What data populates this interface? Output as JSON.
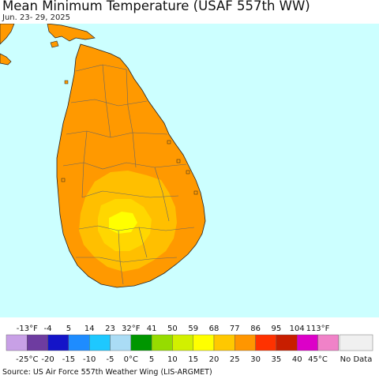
{
  "header": {
    "title": "Mean Minimum Temperature (USAF 557th WW)",
    "date_range": "Jun. 23- 29, 2025"
  },
  "map": {
    "ocean_color": "#ccffff",
    "land_color_dominant": "#ff9900",
    "warm_zone_color": "#ffbf00",
    "cooler_zone_color": "#ffd700",
    "coolest_spot_color": "#ffff00",
    "region": "Sri Lanka"
  },
  "legend": {
    "fahrenheit_labels": [
      "-13°F",
      "-4",
      "5",
      "14",
      "23",
      "32°F",
      "41",
      "50",
      "59",
      "68",
      "77",
      "86",
      "95",
      "104",
      "113°F"
    ],
    "celsius_labels": [
      "-25°C",
      "-20",
      "-15",
      "-10",
      "-5",
      "0°C",
      "5",
      "10",
      "15",
      "20",
      "25",
      "30",
      "35",
      "40",
      "45°C"
    ],
    "colors": [
      "#c8a0e6",
      "#6e3ca0",
      "#1414c8",
      "#1e8cff",
      "#1ec8ff",
      "#aadcf5",
      "#009600",
      "#96dc00",
      "#d2f000",
      "#ffff00",
      "#ffc800",
      "#ff9600",
      "#ff3200",
      "#c81e00",
      "#dc00c8",
      "#f082c8"
    ],
    "no_data_label": "No Data",
    "no_data_color": "#f0f0f0"
  },
  "footer": {
    "source": "Source: US Air Force 557th Weather Wing (LIS-ARGMET)"
  }
}
